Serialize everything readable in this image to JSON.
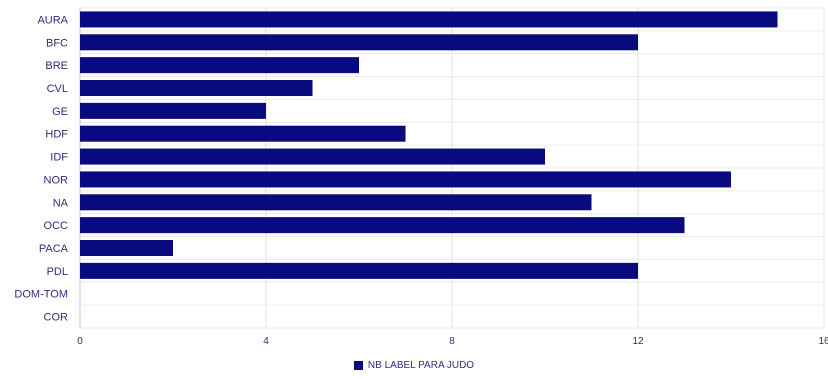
{
  "chart_data": {
    "type": "bar",
    "orientation": "horizontal",
    "categories": [
      "AURA",
      "BFC",
      "BRE",
      "CVL",
      "GE",
      "HDF",
      "IDF",
      "NOR",
      "NA",
      "OCC",
      "PACA",
      "PDL",
      "DOM-TOM",
      "COR"
    ],
    "series": [
      {
        "name": "NB LABEL PARA JUDO",
        "color": "#0a0a80",
        "values": [
          15,
          12,
          6,
          5,
          4,
          7,
          10,
          14,
          11,
          13,
          2,
          12,
          0,
          0
        ]
      }
    ],
    "xlim": [
      0,
      16
    ],
    "xticks": [
      0,
      4,
      8,
      12,
      16
    ],
    "grid": true,
    "legend_position": "bottom"
  }
}
